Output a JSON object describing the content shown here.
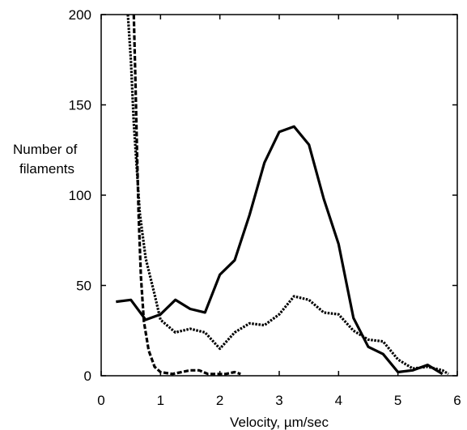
{
  "chart_data": {
    "type": "line",
    "title": "",
    "xlabel": "Velocity, µm/sec",
    "ylabel_lines": [
      "Number of",
      "filaments"
    ],
    "xlim": [
      0,
      6
    ],
    "ylim": [
      0,
      200
    ],
    "xticks": [
      0,
      1,
      2,
      3,
      4,
      5,
      6
    ],
    "yticks": [
      0,
      50,
      100,
      150,
      200
    ],
    "grid": false,
    "legend": "none",
    "series": [
      {
        "style": "solid",
        "color": "#000000",
        "x": [
          0.25,
          0.5,
          0.75,
          1.0,
          1.25,
          1.5,
          1.75,
          2.0,
          2.25,
          2.5,
          2.75,
          3.0,
          3.25,
          3.5,
          3.75,
          4.0,
          4.25,
          4.5,
          4.75,
          5.0,
          5.25,
          5.5,
          5.75
        ],
        "y": [
          41,
          42,
          31,
          34,
          42,
          37,
          35,
          56,
          64,
          89,
          118,
          135,
          138,
          128,
          98,
          73,
          32,
          16,
          12,
          2,
          3,
          6,
          1
        ]
      },
      {
        "style": "dotted",
        "color": "#000000",
        "x": [
          0.45,
          0.5,
          0.55,
          0.65,
          0.75,
          0.9,
          1.0,
          1.25,
          1.5,
          1.75,
          2.0,
          2.25,
          2.5,
          2.75,
          3.0,
          3.25,
          3.5,
          3.75,
          4.0,
          4.25,
          4.5,
          4.75,
          5.0,
          5.25,
          5.5,
          5.75,
          5.85
        ],
        "y": [
          200,
          175,
          140,
          90,
          65,
          45,
          31,
          24,
          26,
          24,
          15,
          24,
          29,
          28,
          34,
          44,
          42,
          35,
          34,
          25,
          20,
          19,
          9,
          4,
          5,
          3,
          1
        ]
      },
      {
        "style": "dashed",
        "color": "#000000",
        "x": [
          0.55,
          0.58,
          0.6,
          0.63,
          0.67,
          0.72,
          0.8,
          0.9,
          1.0,
          1.2,
          1.5,
          1.65,
          1.8,
          2.1,
          2.25,
          2.35
        ],
        "y": [
          200,
          160,
          130,
          90,
          55,
          30,
          14,
          5,
          2,
          1,
          3,
          3,
          1,
          1,
          2,
          1
        ]
      }
    ]
  }
}
